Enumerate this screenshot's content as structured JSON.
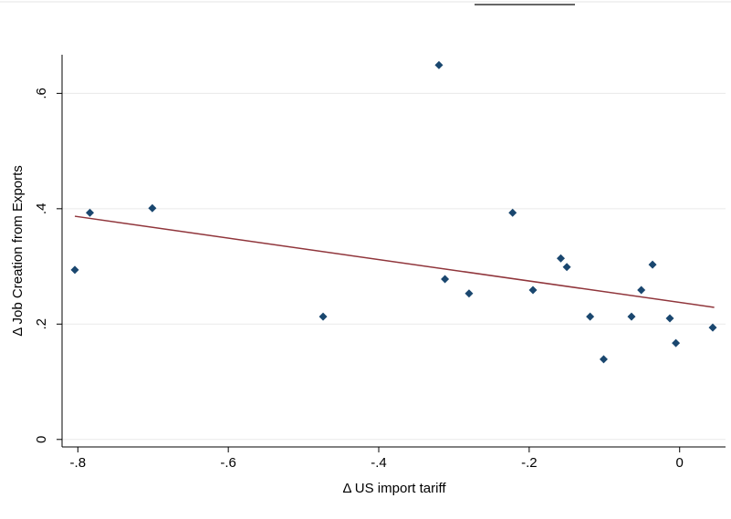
{
  "chart_data": {
    "type": "scatter",
    "x_label": "Δ US import tariff",
    "y_label": "Δ Job Creation from Exports",
    "x": [
      -0.804,
      -0.784,
      -0.701,
      -0.474,
      -0.32,
      -0.312,
      -0.28,
      -0.222,
      -0.195,
      -0.158,
      -0.15,
      -0.119,
      -0.101,
      -0.064,
      -0.051,
      -0.036,
      -0.013,
      -0.005,
      0.044
    ],
    "values": [
      0.294,
      0.393,
      0.401,
      0.213,
      0.649,
      0.278,
      0.253,
      0.393,
      0.259,
      0.314,
      0.299,
      0.213,
      0.139,
      0.213,
      0.259,
      0.303,
      0.21,
      0.167,
      0.194
    ],
    "color": "#1a476f",
    "fit": {
      "x": [
        -0.804,
        0.046
      ],
      "values": [
        0.387,
        0.229
      ],
      "color": "#90353b"
    },
    "xlim": [
      -0.821,
      0.061
    ],
    "ylim": [
      -0.013,
      0.667
    ],
    "xticks": [
      {
        "value": -0.8,
        "label": "-.8"
      },
      {
        "value": -0.6,
        "label": "-.6"
      },
      {
        "value": -0.4,
        "label": "-.4"
      },
      {
        "value": -0.2,
        "label": "-.2"
      },
      0
    ],
    "yticks": [
      0,
      {
        "value": 0.2,
        "label": ".2"
      },
      {
        "value": 0.4,
        "label": ".4"
      },
      {
        "value": 0.6,
        "label": ".6"
      }
    ],
    "grid": true
  }
}
